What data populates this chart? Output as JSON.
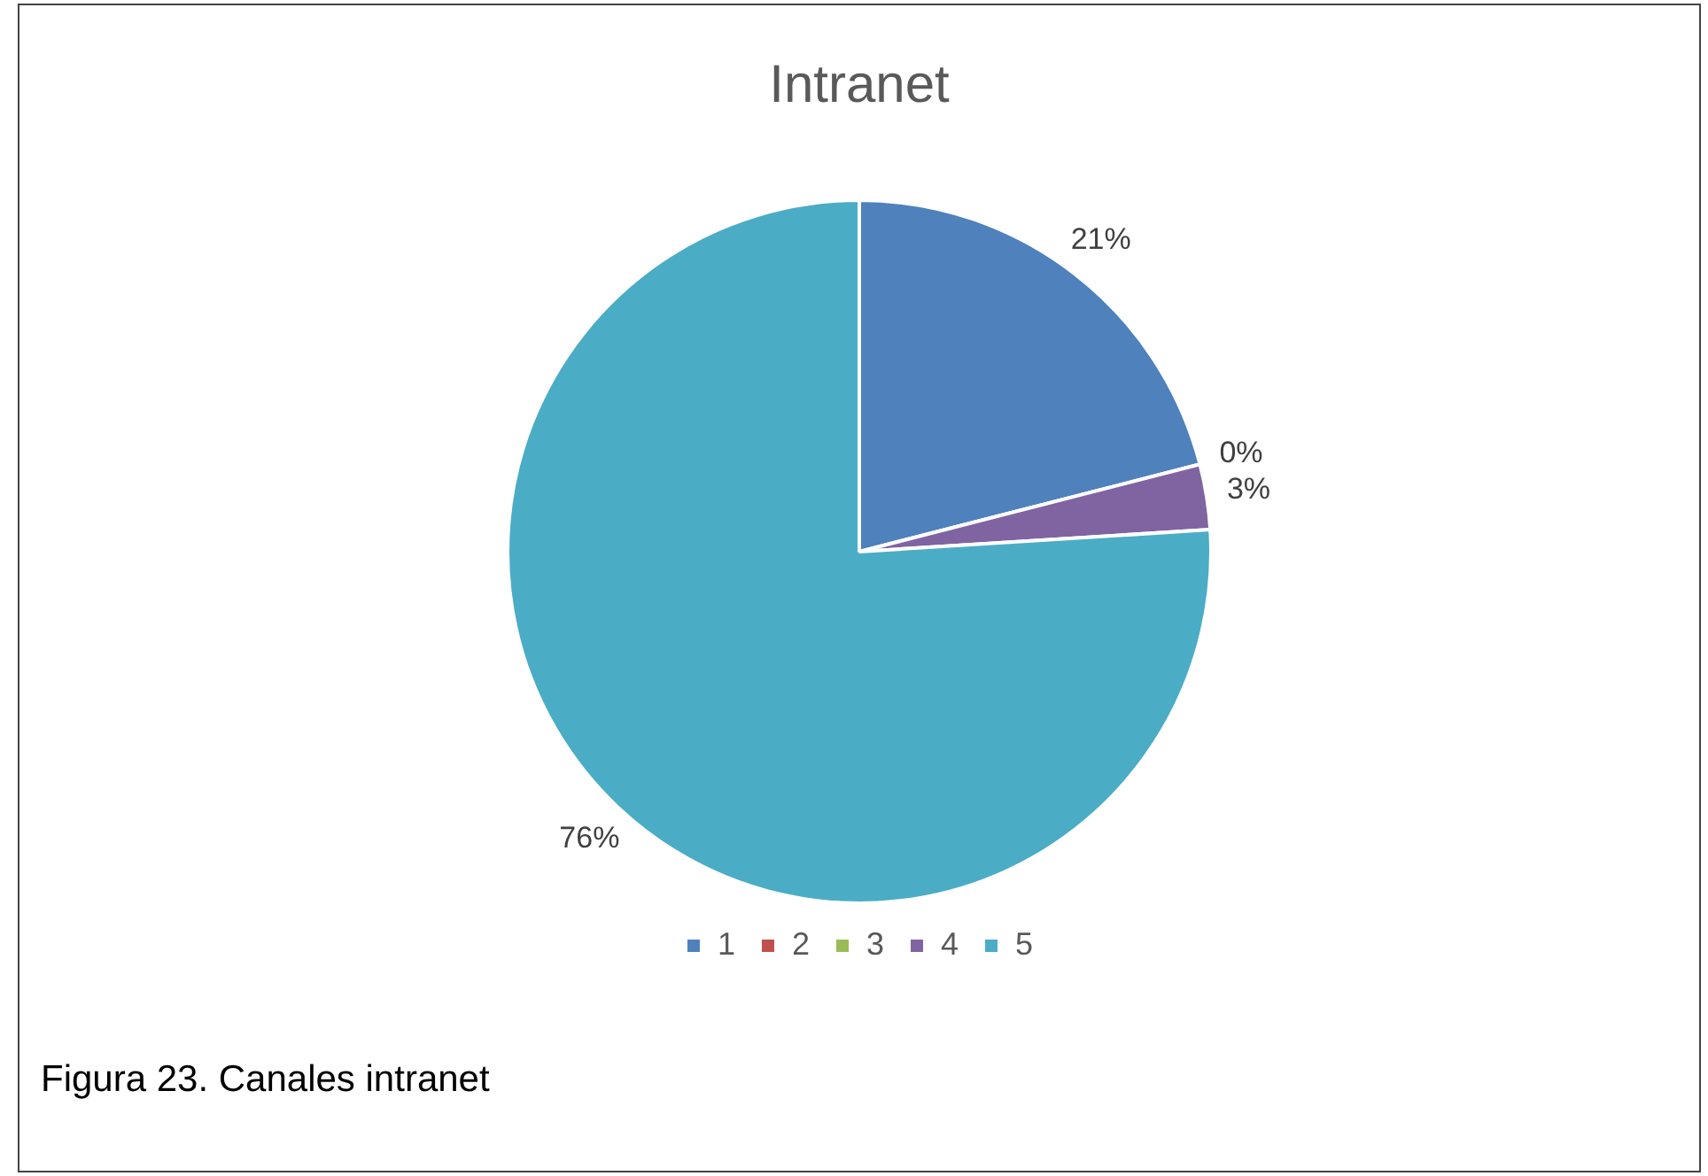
{
  "chart_data": {
    "type": "pie",
    "title": "Intranet",
    "categories": [
      "1",
      "2",
      "3",
      "4",
      "5"
    ],
    "values": [
      21,
      0,
      0,
      3,
      76
    ],
    "colors": [
      "#4f81bd",
      "#c0504d",
      "#9bbb59",
      "#8064a2",
      "#4bacc6"
    ],
    "value_labels": [
      "21%",
      "0%",
      null,
      "3%",
      "76%"
    ],
    "legend": "bottom",
    "annotations": [
      "Figura 23. Canales intranet"
    ]
  }
}
